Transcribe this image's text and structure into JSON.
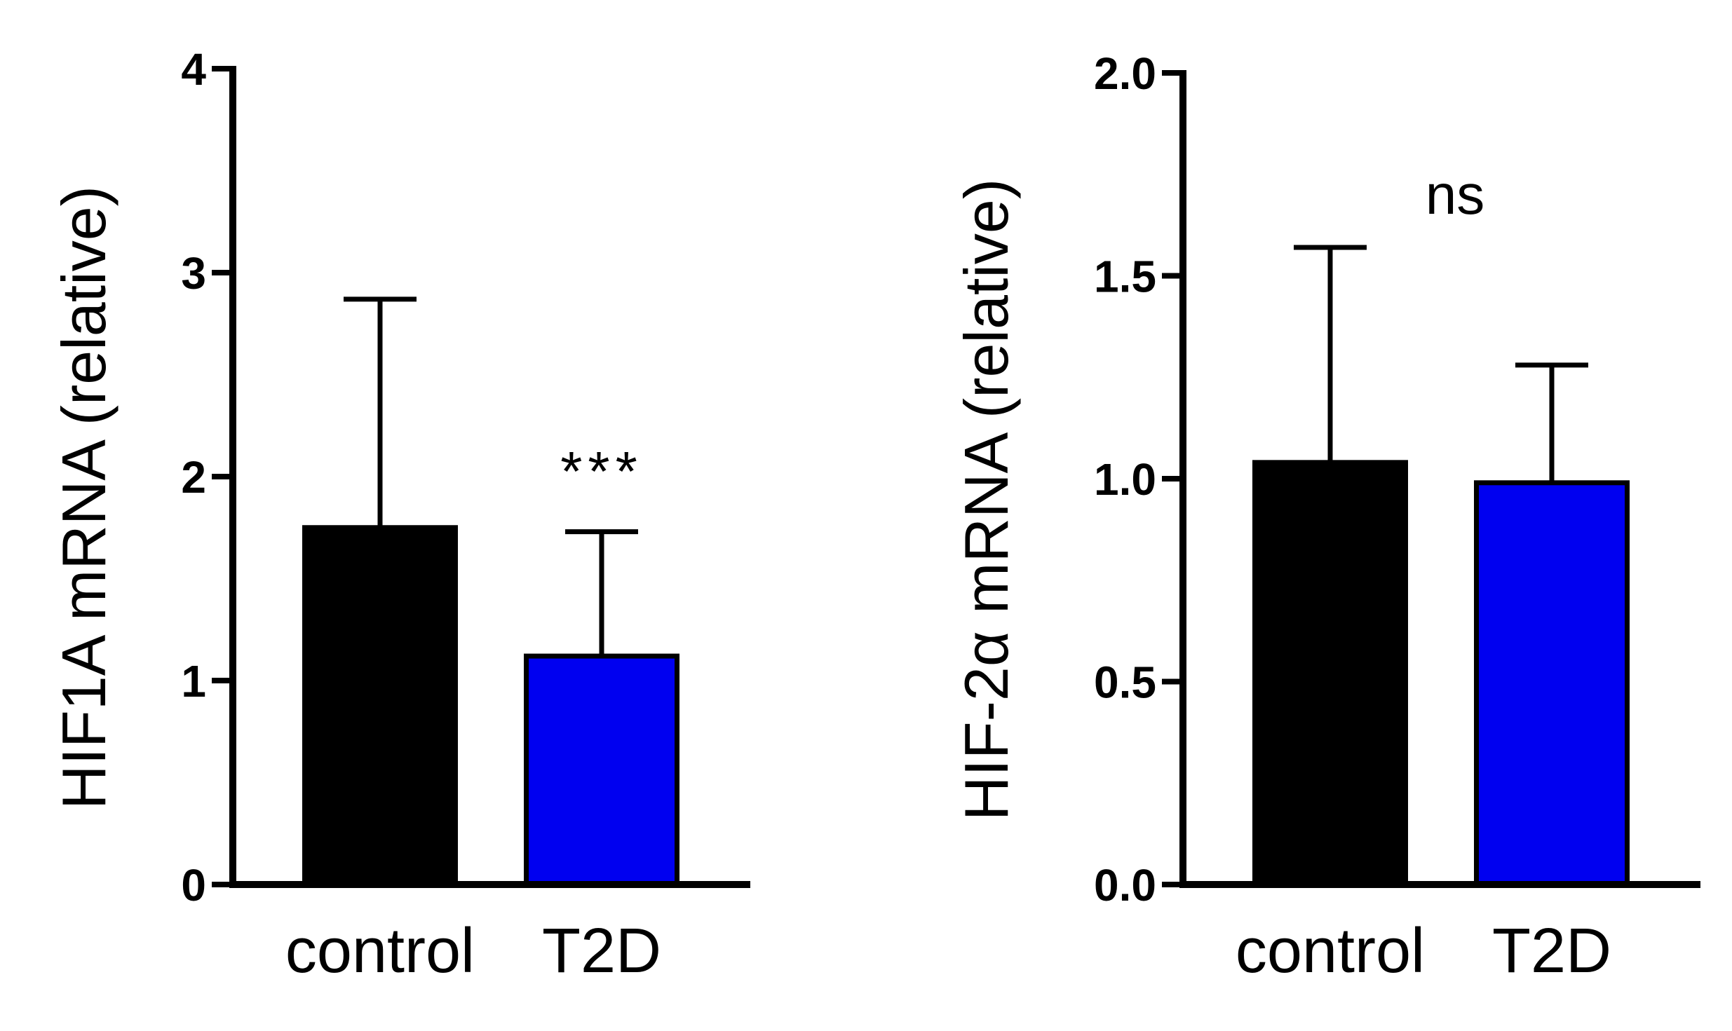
{
  "chart_data": [
    {
      "type": "bar",
      "title": "",
      "xlabel": "",
      "ylabel": "HIF1A mRNA (relative)",
      "ylim": [
        0,
        4
      ],
      "yticks": [
        "0",
        "1",
        "2",
        "3",
        "4"
      ],
      "categories": [
        "control",
        "T2D"
      ],
      "values": [
        1.75,
        1.12
      ],
      "errors": [
        1.12,
        0.61
      ],
      "colors": [
        "#000000",
        "#0000f0"
      ],
      "annotation": {
        "text": "***",
        "category_index": 1
      }
    },
    {
      "type": "bar",
      "title": "",
      "xlabel": "",
      "ylabel": "HIF-2α mRNA (relative)",
      "ylim": [
        0,
        2
      ],
      "yticks": [
        "0.0",
        "0.5",
        "1.0",
        "1.5",
        "2.0"
      ],
      "categories": [
        "control",
        "T2D"
      ],
      "values": [
        1.04,
        0.99
      ],
      "errors": [
        0.53,
        0.29
      ],
      "colors": [
        "#000000",
        "#0000f0"
      ],
      "annotation": {
        "text": "ns",
        "category_index": 0.5
      }
    }
  ]
}
